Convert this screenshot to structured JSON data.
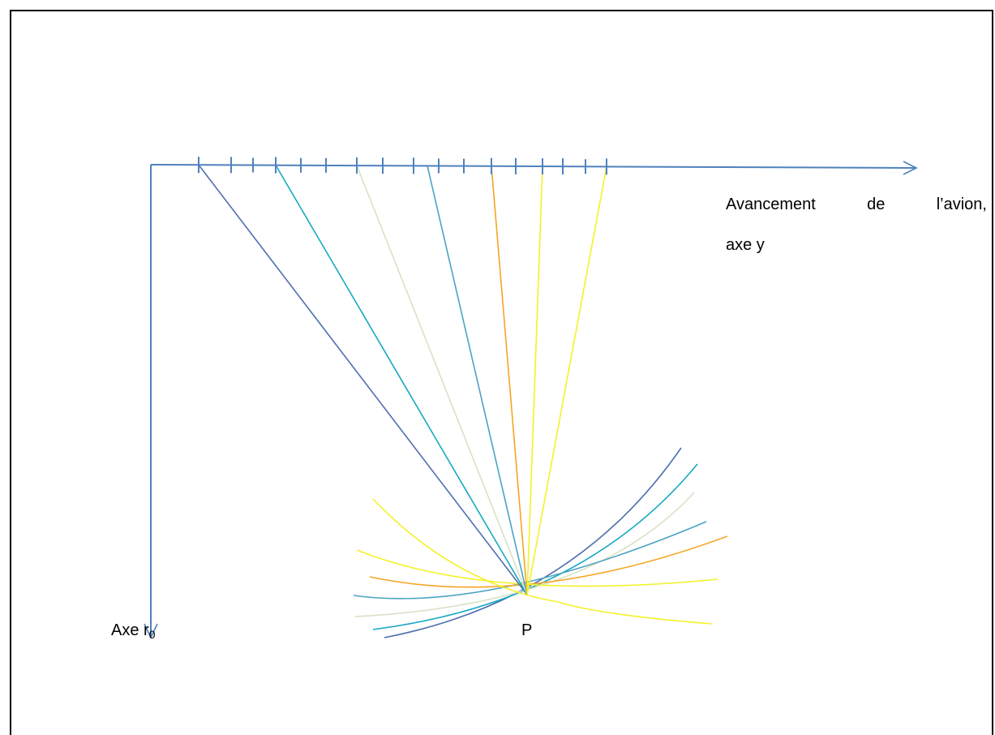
{
  "axes": {
    "y_axis_label_line1_words": [
      "Avancement",
      "de",
      "l’avion,"
    ],
    "y_axis_label_line2": "axe y",
    "r_axis_label": "Axe r",
    "r_axis_label_subscript": "0"
  },
  "point_label": "P",
  "colors": {
    "axis": "#4F81BD",
    "frame": "#000000",
    "rays": [
      "#4F6FAE",
      "#17A9C1",
      "#D9E1C4",
      "#4BA3C3",
      "#F5A623",
      "#F2F229",
      "#F2F229"
    ],
    "curves": [
      "#4F6FAE",
      "#17A9C1",
      "#D9E1C4",
      "#4BA3C3",
      "#F5A623",
      "#F2F229",
      "#F2F229"
    ]
  }
}
